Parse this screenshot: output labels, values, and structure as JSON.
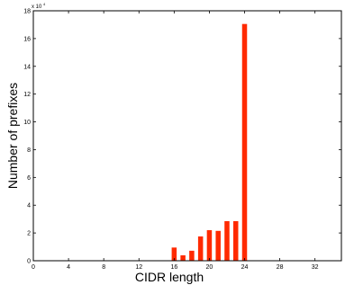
{
  "chart_data": {
    "type": "bar",
    "xlabel": "CIDR length",
    "ylabel": "Number of prefixes",
    "xlim": [
      0,
      35
    ],
    "ylim": [
      0,
      180000
    ],
    "x_ticks": [
      0,
      4,
      8,
      12,
      16,
      20,
      24,
      28,
      32
    ],
    "y_ticks": [
      0,
      20000,
      40000,
      60000,
      80000,
      100000,
      120000,
      140000,
      160000,
      180000
    ],
    "y_tick_labels": [
      "0",
      "2",
      "4",
      "6",
      "8",
      "10",
      "12",
      "14",
      "16",
      "18"
    ],
    "y_multiplier": "x 10",
    "y_multiplier_exp": "4",
    "grid": false,
    "bar_color": "#ff2a00",
    "x": [
      8,
      16,
      17,
      18,
      19,
      20,
      21,
      22,
      23,
      24
    ],
    "values": [
      80,
      9500,
      3900,
      7200,
      17500,
      22000,
      21500,
      28500,
      28500,
      170500
    ]
  }
}
